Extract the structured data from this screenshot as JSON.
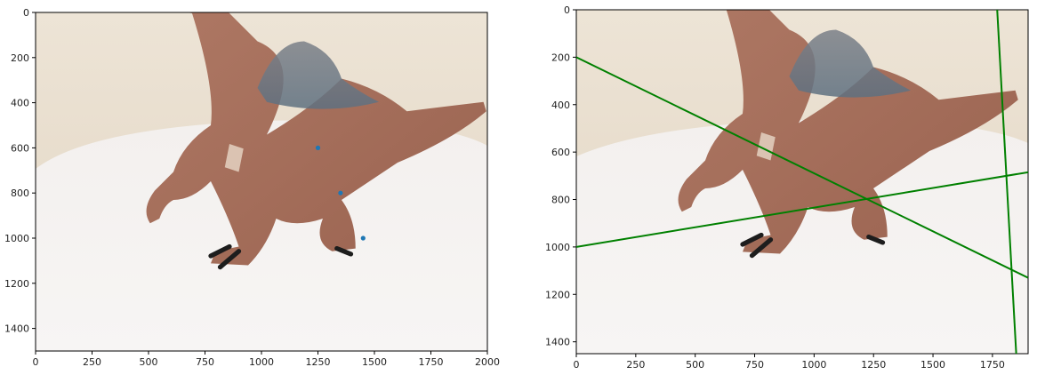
{
  "chart_data": [
    {
      "type": "image",
      "title": "",
      "xlabel": "",
      "ylabel": "",
      "xlim": [
        0,
        2000
      ],
      "ylim": [
        1500,
        0
      ],
      "x_ticks": [
        0,
        250,
        500,
        750,
        1000,
        1250,
        1500,
        1750,
        2000
      ],
      "y_ticks": [
        0,
        200,
        400,
        600,
        800,
        1000,
        1200,
        1400
      ],
      "image_content": "photograph of a brown toy spinosaurus on a white table",
      "overlay": {
        "type": "scatter",
        "color": "#1f77b4",
        "points": [
          {
            "x": 1250,
            "y": 600
          },
          {
            "x": 1350,
            "y": 800
          },
          {
            "x": 1450,
            "y": 1000
          }
        ]
      }
    },
    {
      "type": "image",
      "title": "",
      "xlabel": "",
      "ylabel": "",
      "xlim": [
        0,
        1900
      ],
      "ylim": [
        1450,
        0
      ],
      "x_ticks": [
        0,
        250,
        500,
        750,
        1000,
        1250,
        1500,
        1750
      ],
      "y_ticks": [
        0,
        200,
        400,
        600,
        800,
        1000,
        1200,
        1400
      ],
      "image_content": "photograph of a brown toy spinosaurus on a white table",
      "overlay": {
        "type": "line",
        "color": "#008000",
        "lines": [
          {
            "x": [
              0,
              1900
            ],
            "y": [
              200,
              1130
            ]
          },
          {
            "x": [
              0,
              1900
            ],
            "y": [
              1000,
              685
            ]
          },
          {
            "x": [
              1770,
              1850
            ],
            "y": [
              0,
              1450
            ]
          }
        ]
      }
    }
  ]
}
